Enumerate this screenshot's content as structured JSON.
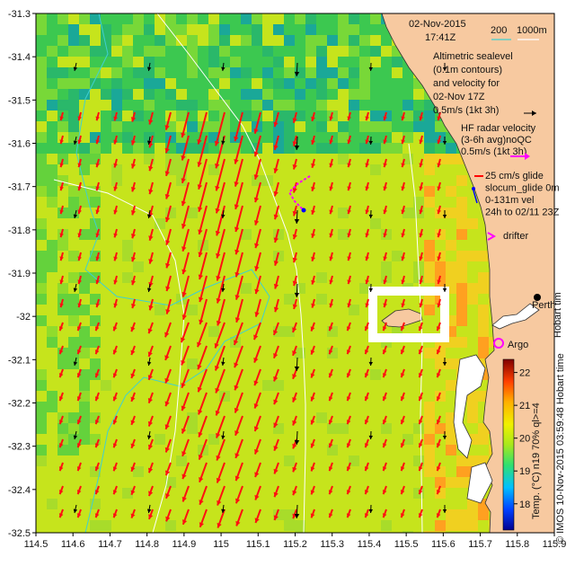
{
  "header": {
    "date": "02-Nov-2015",
    "time": "17:41Z",
    "scale_depth_200": "200",
    "scale_depth_1000": "1000m"
  },
  "legend": {
    "sealevel_lines": [
      "Altimetric sealevel",
      "(0.1m contours)",
      "and velocity for",
      "02-Nov 17Z",
      "0.5m/s (1kt 3h)"
    ],
    "hf_lines": [
      "HF radar velocity",
      "(3-6h avg)noQC",
      "0.5m/s (1kt 3h)"
    ],
    "glide_lines": [
      "25 cm/s glide",
      "slocum_glide 0m",
      "0-131m vel",
      "24h to 02/11 23Z"
    ],
    "drifter": "drifter",
    "perth": "Perth",
    "argo": "Argo",
    "hobart": "Hobart tim",
    "credit": "© IMOS 10-Nov-2015 03:59:48 Hobart time",
    "colorbar_title": "Temp. (°C) n19 70% ql>=4"
  },
  "axes": {
    "x_ticks": [
      "114.5",
      "114.6",
      "114.7",
      "114.8",
      "114.9",
      "115",
      "115.1",
      "115.2",
      "115.3",
      "115.4",
      "115.5",
      "115.6",
      "115.7",
      "115.8",
      "115.9"
    ],
    "y_ticks": [
      "-31.3",
      "-31.4",
      "-31.5",
      "-31.6",
      "-31.7",
      "-31.8",
      "-31.9",
      "-32",
      "-32.1",
      "-32.2",
      "-32.3",
      "-32.4",
      "-32.5"
    ]
  },
  "colorbar": {
    "ticks": [
      "18",
      "19",
      "20",
      "21",
      "22"
    ],
    "range": [
      17.2,
      22.4
    ]
  },
  "colors": {
    "land": "#f7c9a0",
    "hf_arrow": "#ff1010",
    "sealevel_arrow": "#000000",
    "glide": "#ff00ff",
    "argo": "#ff00ff",
    "isobath_200": "#40d0d0",
    "isobath_1000": "#ffffff"
  }
}
